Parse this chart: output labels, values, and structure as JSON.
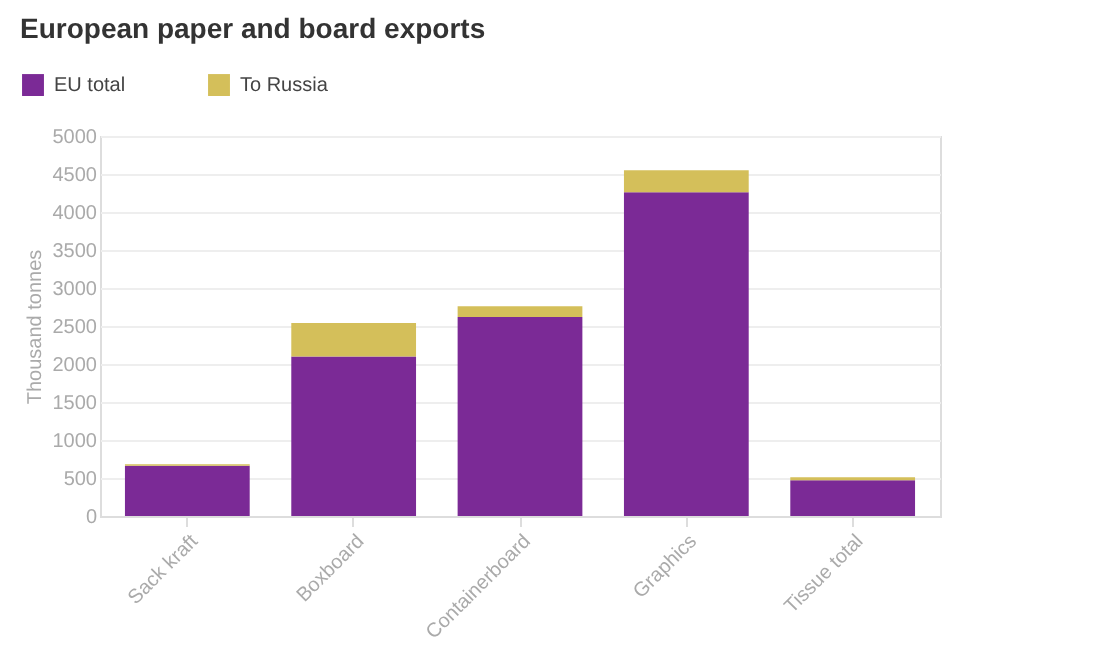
{
  "chart_data": {
    "type": "bar",
    "title": "European paper and board exports",
    "ylabel": "Thousand tonnes",
    "categories": [
      "Sack kraft",
      "Boxboard",
      "Containerboard",
      "Graphics",
      "Tissue total"
    ],
    "series": [
      {
        "name": "EU total",
        "color": "#7b2a96",
        "values": [
          660,
          2100,
          2620,
          4260,
          470
        ]
      },
      {
        "name": "To Russia",
        "color": "#d4bf5a",
        "values": [
          20,
          440,
          140,
          290,
          40
        ]
      }
    ],
    "stacked": true,
    "ylim": [
      0,
      5000
    ],
    "yticks": [
      0,
      500,
      1000,
      1500,
      2000,
      2500,
      3000,
      3500,
      4000,
      4500,
      5000
    ],
    "grid": "y",
    "legend": "top left"
  }
}
